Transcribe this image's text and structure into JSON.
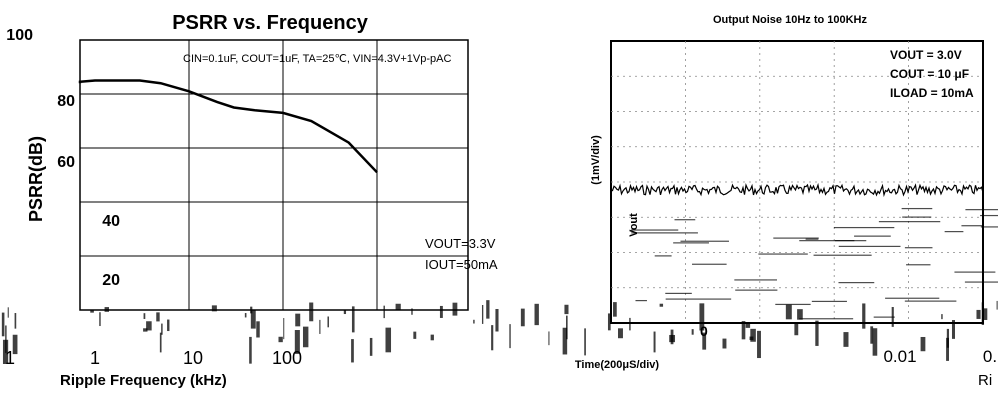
{
  "chart_data": [
    {
      "type": "line",
      "title": "PSRR vs. Frequency",
      "conditions": "CIN=0.1uF, COUT=1uF, TA=25℃, VIN=4.3V+1Vp-pAC",
      "ylabel": "PSRR(dB)",
      "xlabel": "Ripple Frequency (kHz)",
      "ylim": [
        0,
        100
      ],
      "yticks": [
        "100",
        "80",
        "60",
        "40",
        "20"
      ],
      "xticks": [
        "1",
        "1",
        "10",
        "100"
      ],
      "log_x": true,
      "grid": true,
      "annotations": [
        "VOUT=3.3V",
        "IOUT=50mA"
      ],
      "series": [
        {
          "x": [
            0.1,
            0.3,
            1,
            3,
            5,
            10,
            20,
            30,
            50,
            100,
            200,
            500,
            1000
          ],
          "values": [
            84,
            84.5,
            85,
            85,
            84,
            81,
            77,
            75,
            74,
            73,
            70,
            62,
            51
          ]
        }
      ]
    },
    {
      "type": "line",
      "title": "Output Noise 10Hz to 100KHz",
      "ylabel": "(1mV/div)",
      "xlabel": "Time(200μS/div)",
      "annotations": [
        "VOUT = 3.0V",
        "COUT = 10 μF",
        "ILOAD = 10mA"
      ],
      "trace_label": "Vout",
      "zero_label": "0",
      "x_extra": [
        "0.01",
        "0."
      ],
      "y_extra": "Ri"
    }
  ]
}
